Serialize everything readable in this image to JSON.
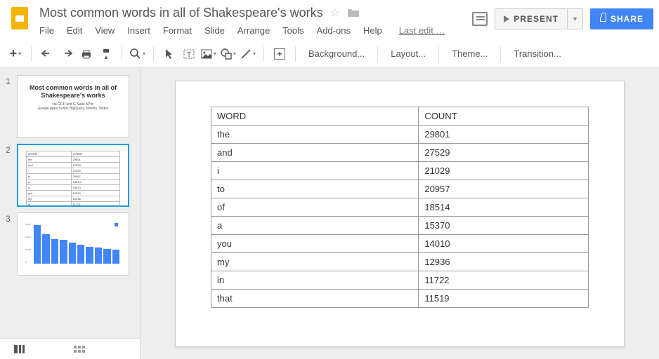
{
  "doc": {
    "title": "Most common words in all of Shakespeare's works",
    "last_edit": "Last edit …"
  },
  "menus": [
    "File",
    "Edit",
    "View",
    "Insert",
    "Format",
    "Slide",
    "Arrange",
    "Tools",
    "Add-ons",
    "Help"
  ],
  "header_buttons": {
    "present": "PRESENT",
    "share": "SHARE"
  },
  "toolbar_text": {
    "background": "Background...",
    "layout": "Layout...",
    "theme": "Theme...",
    "transition": "Transition..."
  },
  "table": {
    "columns": [
      "WORD",
      "COUNT"
    ],
    "rows": [
      [
        "the",
        "29801"
      ],
      [
        "and",
        "27529"
      ],
      [
        "i",
        "21029"
      ],
      [
        "to",
        "20957"
      ],
      [
        "of",
        "18514"
      ],
      [
        "a",
        "15370"
      ],
      [
        "you",
        "14010"
      ],
      [
        "my",
        "12936"
      ],
      [
        "in",
        "11722"
      ],
      [
        "that",
        "11519"
      ]
    ],
    "border_color": "#999999",
    "background_color": "#ffffff",
    "text_color": "#333333",
    "fontsize": 13
  },
  "thumbs": {
    "t1": {
      "title": "Most common words in all of Shakespeare's works",
      "sub1": "via GCP and G Suite APIs:",
      "sub2": "Google Apps Script, BigQuery, Sheets, Slides"
    },
    "t3_chart": {
      "type": "bar",
      "bar_heights_pct": [
        95,
        72,
        60,
        58,
        52,
        46,
        42,
        40,
        36,
        34
      ],
      "bar_color": "#4285f4",
      "y_labels": [
        "30000",
        "20000",
        "10000",
        "0"
      ]
    }
  },
  "colors": {
    "accent_blue": "#4285f4",
    "selection_blue": "#1a9bda",
    "sidebar_bg": "#eeeeee"
  }
}
